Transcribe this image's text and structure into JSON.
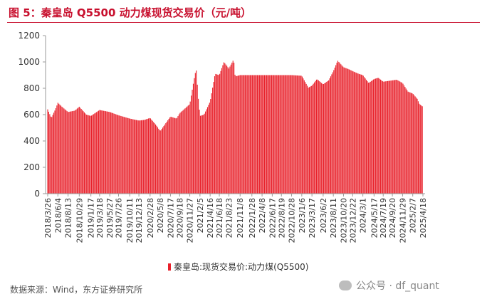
{
  "header": {
    "title": "图 5：秦皇岛 Q5500 动力煤现货交易价（元/吨）"
  },
  "legend": {
    "label": "秦皇岛:现货交易价:动力煤(Q5500)"
  },
  "footer": {
    "source": "数据来源：Wind，东方证券研究所",
    "watermark": "公众号 · df_quant"
  },
  "colors": {
    "bar": "#e8202a",
    "title": "#c8102e"
  },
  "chart_data": {
    "type": "bar",
    "title": "图 5：秦皇岛 Q5500 动力煤现货交易价（元/吨）",
    "xlabel": "",
    "ylabel": "",
    "ylim": [
      0,
      1200
    ],
    "yticks": [
      0,
      200,
      400,
      600,
      800,
      1000,
      1200
    ],
    "grid": false,
    "legend_position": "bottom",
    "x_tick_labels": [
      "2018/3/26",
      "2018/6/4",
      "2018/8/13",
      "2018/10/29",
      "2019/1/17",
      "2019/3/18",
      "2019/5/27",
      "2019/7/26",
      "2019/10/11",
      "2019/12/13",
      "2020/2/28",
      "2020/5/8",
      "2020/7/17",
      "2020/9/18",
      "2020/11/27",
      "2021/2/5",
      "2021/4/16",
      "2021/6/18",
      "2021/8/23",
      "2021/11/8",
      "2022/1/28",
      "2022/4/8",
      "2022/6/17",
      "2022/8/19",
      "2022/10/28",
      "2023/1/6",
      "2023/3/17",
      "2023/6/2",
      "2023/8/11",
      "2023/10/20",
      "2023/12/22",
      "2024/3/1",
      "2024/5/17",
      "2024/7/19",
      "2024/9/20",
      "2024/11/29",
      "2025/2/7",
      "2025/4/18"
    ],
    "series": [
      {
        "name": "秦皇岛:现货交易价:动力煤(Q5500)",
        "anchors": [
          [
            "2018/3/26",
            640
          ],
          [
            "2018/4/20",
            575
          ],
          [
            "2018/5/18",
            640
          ],
          [
            "2018/6/4",
            690
          ],
          [
            "2018/7/2",
            660
          ],
          [
            "2018/8/13",
            620
          ],
          [
            "2018/9/28",
            630
          ],
          [
            "2018/10/29",
            660
          ],
          [
            "2018/12/17",
            600
          ],
          [
            "2019/1/17",
            590
          ],
          [
            "2019/3/18",
            635
          ],
          [
            "2019/5/27",
            620
          ],
          [
            "2019/7/26",
            595
          ],
          [
            "2019/10/11",
            570
          ],
          [
            "2019/12/13",
            555
          ],
          [
            "2020/1/20",
            560
          ],
          [
            "2020/2/28",
            575
          ],
          [
            "2020/4/10",
            520
          ],
          [
            "2020/5/8",
            475
          ],
          [
            "2020/7/17",
            585
          ],
          [
            "2020/8/28",
            570
          ],
          [
            "2020/9/18",
            610
          ],
          [
            "2020/11/27",
            680
          ],
          [
            "2020/12/25",
            860
          ],
          [
            "2021/1/10",
            950
          ],
          [
            "2021/1/25",
            720
          ],
          [
            "2021/2/5",
            590
          ],
          [
            "2021/3/5",
            600
          ],
          [
            "2021/4/16",
            700
          ],
          [
            "2021/5/20",
            910
          ],
          [
            "2021/6/18",
            900
          ],
          [
            "2021/7/20",
            1000
          ],
          [
            "2021/8/23",
            950
          ],
          [
            "2021/9/25",
            1020
          ],
          [
            "2021/10/5",
            890
          ],
          [
            "2021/11/8",
            900
          ],
          [
            "2022/1/28",
            900
          ],
          [
            "2022/4/8",
            900
          ],
          [
            "2022/6/17",
            900
          ],
          [
            "2022/8/19",
            900
          ],
          [
            "2022/10/28",
            900
          ],
          [
            "2023/1/6",
            895
          ],
          [
            "2023/2/20",
            805
          ],
          [
            "2023/3/17",
            820
          ],
          [
            "2023/4/20",
            870
          ],
          [
            "2023/6/2",
            830
          ],
          [
            "2023/7/10",
            860
          ],
          [
            "2023/8/11",
            930
          ],
          [
            "2023/9/10",
            1010
          ],
          [
            "2023/10/20",
            960
          ],
          [
            "2023/11/25",
            945
          ],
          [
            "2023/12/22",
            930
          ],
          [
            "2024/2/1",
            910
          ],
          [
            "2024/3/1",
            900
          ],
          [
            "2024/4/10",
            840
          ],
          [
            "2024/5/17",
            870
          ],
          [
            "2024/6/15",
            880
          ],
          [
            "2024/7/19",
            850
          ],
          [
            "2024/9/20",
            860
          ],
          [
            "2024/10/20",
            865
          ],
          [
            "2024/11/29",
            840
          ],
          [
            "2025/1/5",
            775
          ],
          [
            "2025/2/7",
            760
          ],
          [
            "2025/3/10",
            720
          ],
          [
            "2025/3/25",
            680
          ],
          [
            "2025/4/18",
            660
          ]
        ]
      }
    ]
  }
}
